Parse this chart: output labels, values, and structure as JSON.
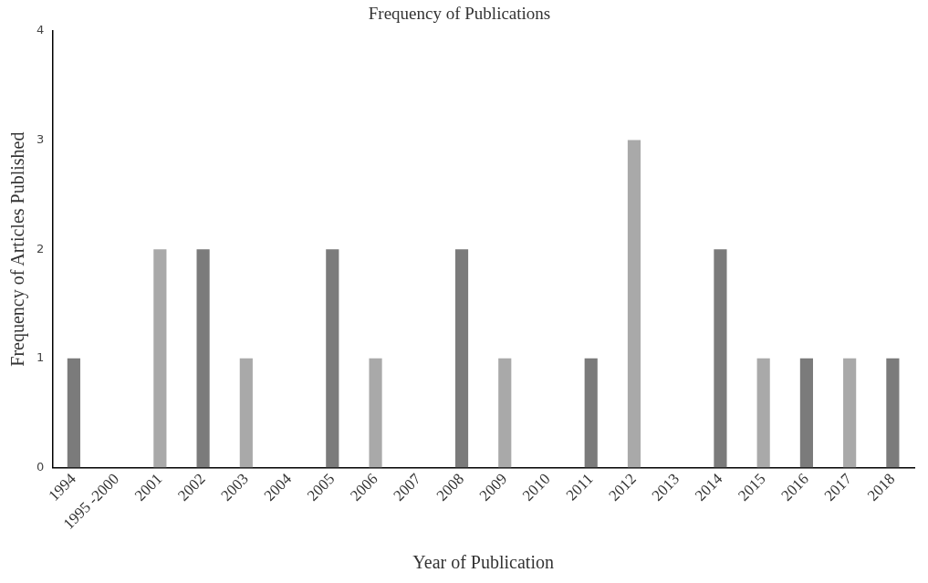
{
  "chart_data": {
    "type": "bar",
    "title": "Frequency of Publications",
    "xlabel": "Year of Publication",
    "ylabel": "Frequency of Articles Published",
    "categories": [
      "1994",
      "1995 -2000",
      "2001",
      "2002",
      "2003",
      "2004",
      "2005",
      "2006",
      "2007",
      "2008",
      "2009",
      "2010",
      "2011",
      "2012",
      "2013",
      "2014",
      "2015",
      "2016",
      "2017",
      "2018"
    ],
    "values": [
      1,
      0,
      2,
      2,
      1,
      0,
      2,
      1,
      0,
      2,
      1,
      0,
      1,
      3,
      0,
      2,
      1,
      1,
      1,
      1
    ],
    "colors": [
      "#7b7b7b",
      "#7b7b7b",
      "#a9a9a9",
      "#7b7b7b",
      "#a9a9a9",
      "#7b7b7b",
      "#7b7b7b",
      "#a9a9a9",
      "#7b7b7b",
      "#7b7b7b",
      "#a9a9a9",
      "#7b7b7b",
      "#7b7b7b",
      "#a9a9a9",
      "#7b7b7b",
      "#7b7b7b",
      "#a9a9a9",
      "#7b7b7b",
      "#a9a9a9",
      "#7b7b7b"
    ],
    "ylim": [
      0,
      4
    ],
    "yticks": [
      0,
      1,
      2,
      3,
      4
    ],
    "grid": false,
    "legend": false
  }
}
